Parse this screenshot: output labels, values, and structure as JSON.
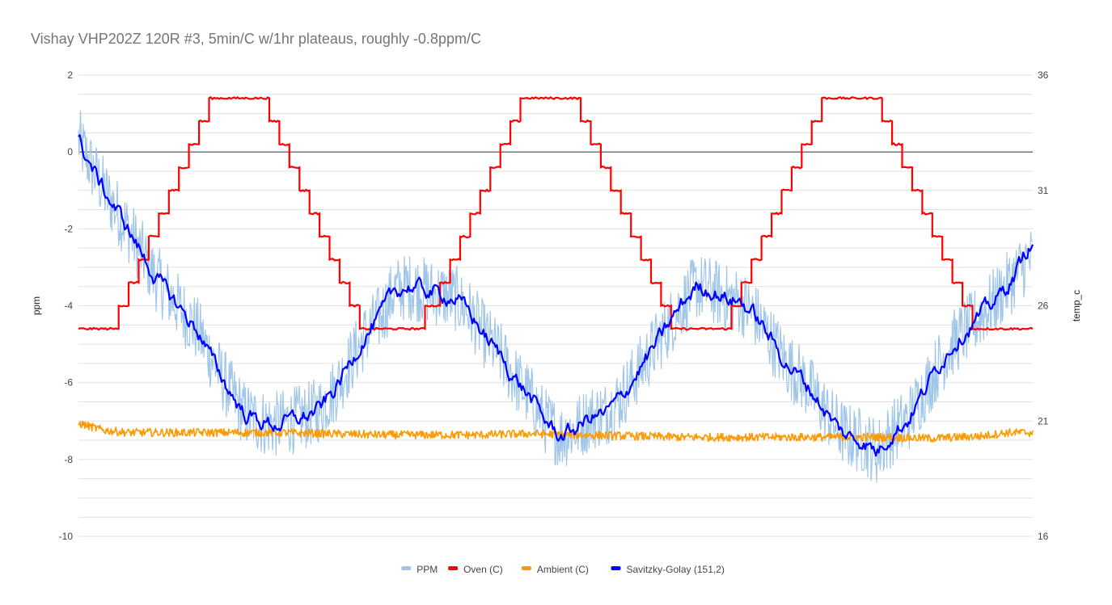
{
  "chart_data": {
    "type": "line",
    "title": "Vishay VHP202Z 120R #3, 5min/C w/1hr plateaus, roughly -0.8ppm/C",
    "ylabel": "ppm",
    "y2label": "temp_c",
    "xlabel": "",
    "ylim": [
      -10,
      2
    ],
    "y2lim": [
      16,
      36
    ],
    "yticks": [
      "2",
      "0",
      "-2",
      "-4",
      "-6",
      "-8",
      "-10"
    ],
    "y2ticks": [
      "36",
      "31",
      "26",
      "21",
      "16"
    ],
    "grid": true,
    "legend_position": "bottom",
    "series": [
      {
        "name": "PPM",
        "axis": "left",
        "color": "#9fc5e8",
        "style": "noisy",
        "noise": 0.55,
        "points": [
          [
            0,
            0.3
          ],
          [
            3,
            -0.5
          ],
          [
            6,
            -1.2
          ],
          [
            9,
            -1.8
          ],
          [
            12,
            -2.5
          ],
          [
            15,
            -3.2
          ],
          [
            18,
            -3.7
          ],
          [
            21,
            -4.2
          ],
          [
            24,
            -4.7
          ],
          [
            27,
            -5.5
          ],
          [
            30,
            -6.2
          ],
          [
            33,
            -6.8
          ],
          [
            36,
            -7.0
          ],
          [
            39,
            -7.1
          ],
          [
            42,
            -7.0
          ],
          [
            45,
            -6.9
          ],
          [
            48,
            -6.7
          ],
          [
            51,
            -6.2
          ],
          [
            54,
            -5.5
          ],
          [
            57,
            -4.8
          ],
          [
            60,
            -4.3
          ],
          [
            63,
            -3.6
          ],
          [
            66,
            -3.5
          ],
          [
            69,
            -3.6
          ],
          [
            72,
            -3.7
          ],
          [
            75,
            -3.8
          ],
          [
            78,
            -4.2
          ],
          [
            81,
            -4.8
          ],
          [
            84,
            -5.3
          ],
          [
            87,
            -5.9
          ],
          [
            90,
            -6.4
          ],
          [
            93,
            -7.0
          ],
          [
            96,
            -7.4
          ],
          [
            99,
            -7.2
          ],
          [
            102,
            -6.9
          ],
          [
            105,
            -6.8
          ],
          [
            108,
            -6.4
          ],
          [
            111,
            -5.8
          ],
          [
            114,
            -5.2
          ],
          [
            117,
            -4.6
          ],
          [
            120,
            -4.0
          ],
          [
            123,
            -3.5
          ],
          [
            126,
            -3.6
          ],
          [
            129,
            -3.8
          ],
          [
            132,
            -3.9
          ],
          [
            135,
            -4.3
          ],
          [
            138,
            -4.9
          ],
          [
            141,
            -5.5
          ],
          [
            144,
            -5.9
          ],
          [
            147,
            -6.4
          ],
          [
            150,
            -7.0
          ],
          [
            153,
            -7.4
          ],
          [
            156,
            -7.5
          ],
          [
            159,
            -7.8
          ],
          [
            162,
            -7.3
          ],
          [
            165,
            -7.0
          ],
          [
            168,
            -6.3
          ],
          [
            171,
            -5.6
          ],
          [
            174,
            -5.0
          ],
          [
            177,
            -4.6
          ],
          [
            180,
            -4.2
          ],
          [
            183,
            -3.8
          ],
          [
            186,
            -3.3
          ],
          [
            189,
            -2.8
          ]
        ]
      },
      {
        "name": "Oven (C)",
        "axis": "right",
        "color": "#ff0000",
        "style": "step",
        "noise": 0.08,
        "points": [
          [
            0,
            25
          ],
          [
            8,
            25
          ],
          [
            8,
            26
          ],
          [
            10,
            26
          ],
          [
            10,
            27
          ],
          [
            12,
            27
          ],
          [
            12,
            28
          ],
          [
            14,
            28
          ],
          [
            14,
            29
          ],
          [
            16,
            29
          ],
          [
            16,
            30
          ],
          [
            18,
            30
          ],
          [
            18,
            31
          ],
          [
            20,
            31
          ],
          [
            20,
            32
          ],
          [
            22,
            32
          ],
          [
            22,
            33
          ],
          [
            24,
            33
          ],
          [
            24,
            34
          ],
          [
            26,
            34
          ],
          [
            26,
            35
          ],
          [
            38,
            35
          ],
          [
            38,
            34
          ],
          [
            40,
            34
          ],
          [
            40,
            33
          ],
          [
            42,
            33
          ],
          [
            42,
            32
          ],
          [
            44,
            32
          ],
          [
            44,
            31
          ],
          [
            46,
            31
          ],
          [
            46,
            30
          ],
          [
            48,
            30
          ],
          [
            48,
            29
          ],
          [
            50,
            29
          ],
          [
            50,
            28
          ],
          [
            52,
            28
          ],
          [
            52,
            27
          ],
          [
            54,
            27
          ],
          [
            54,
            26
          ],
          [
            56,
            26
          ],
          [
            56,
            25
          ],
          [
            69,
            25
          ],
          [
            69,
            26
          ],
          [
            72,
            26
          ],
          [
            72,
            27
          ],
          [
            74,
            27
          ],
          [
            74,
            28
          ],
          [
            76,
            28
          ],
          [
            76,
            29
          ],
          [
            78,
            29
          ],
          [
            78,
            30
          ],
          [
            80,
            30
          ],
          [
            80,
            31
          ],
          [
            82,
            31
          ],
          [
            82,
            32
          ],
          [
            84,
            32
          ],
          [
            84,
            33
          ],
          [
            86,
            33
          ],
          [
            86,
            34
          ],
          [
            88,
            34
          ],
          [
            88,
            35
          ],
          [
            100,
            35
          ],
          [
            100,
            34
          ],
          [
            102,
            34
          ],
          [
            102,
            33
          ],
          [
            104,
            33
          ],
          [
            104,
            32
          ],
          [
            106,
            32
          ],
          [
            106,
            31
          ],
          [
            108,
            31
          ],
          [
            108,
            30
          ],
          [
            110,
            30
          ],
          [
            110,
            29
          ],
          [
            112,
            29
          ],
          [
            112,
            28
          ],
          [
            114,
            28
          ],
          [
            114,
            27
          ],
          [
            116,
            27
          ],
          [
            116,
            26
          ],
          [
            118,
            26
          ],
          [
            118,
            25
          ],
          [
            130,
            25
          ],
          [
            130,
            26
          ],
          [
            132,
            26
          ],
          [
            132,
            27
          ],
          [
            134,
            27
          ],
          [
            134,
            28
          ],
          [
            136,
            28
          ],
          [
            136,
            29
          ],
          [
            138,
            29
          ],
          [
            138,
            30
          ],
          [
            140,
            30
          ],
          [
            140,
            31
          ],
          [
            142,
            31
          ],
          [
            142,
            32
          ],
          [
            144,
            32
          ],
          [
            144,
            33
          ],
          [
            146,
            33
          ],
          [
            146,
            34
          ],
          [
            148,
            34
          ],
          [
            148,
            35
          ],
          [
            160,
            35
          ],
          [
            160,
            34
          ],
          [
            162,
            34
          ],
          [
            162,
            33
          ],
          [
            164,
            33
          ],
          [
            164,
            32
          ],
          [
            166,
            32
          ],
          [
            166,
            31
          ],
          [
            168,
            31
          ],
          [
            168,
            30
          ],
          [
            170,
            30
          ],
          [
            170,
            29
          ],
          [
            172,
            29
          ],
          [
            172,
            28
          ],
          [
            174,
            28
          ],
          [
            174,
            27
          ],
          [
            176,
            27
          ],
          [
            176,
            26
          ],
          [
            178,
            26
          ],
          [
            178,
            25
          ],
          [
            190,
            25
          ]
        ]
      },
      {
        "name": "Ambient (C)",
        "axis": "right",
        "color": "#ff9900",
        "style": "noisy",
        "noise": 0.18,
        "points": [
          [
            0,
            20.9
          ],
          [
            5,
            20.6
          ],
          [
            10,
            20.5
          ],
          [
            20,
            20.5
          ],
          [
            30,
            20.5
          ],
          [
            40,
            20.5
          ],
          [
            50,
            20.45
          ],
          [
            60,
            20.4
          ],
          [
            70,
            20.4
          ],
          [
            80,
            20.4
          ],
          [
            90,
            20.45
          ],
          [
            100,
            20.4
          ],
          [
            110,
            20.35
          ],
          [
            120,
            20.3
          ],
          [
            130,
            20.3
          ],
          [
            140,
            20.3
          ],
          [
            150,
            20.3
          ],
          [
            160,
            20.3
          ],
          [
            170,
            20.25
          ],
          [
            180,
            20.35
          ],
          [
            185,
            20.5
          ],
          [
            190,
            20.5
          ]
        ]
      },
      {
        "name": "Savitzky-Golay (151,2)",
        "axis": "left",
        "color": "#0000ff",
        "style": "noisy",
        "noise": 0.12,
        "points": [
          [
            0,
            0.3
          ],
          [
            3,
            -0.5
          ],
          [
            6,
            -1.2
          ],
          [
            9,
            -1.8
          ],
          [
            12,
            -2.5
          ],
          [
            15,
            -3.2
          ],
          [
            18,
            -3.7
          ],
          [
            21,
            -4.2
          ],
          [
            24,
            -4.7
          ],
          [
            27,
            -5.5
          ],
          [
            30,
            -6.2
          ],
          [
            33,
            -6.8
          ],
          [
            36,
            -7.0
          ],
          [
            39,
            -7.1
          ],
          [
            42,
            -7.0
          ],
          [
            45,
            -6.9
          ],
          [
            48,
            -6.7
          ],
          [
            51,
            -6.2
          ],
          [
            54,
            -5.5
          ],
          [
            57,
            -4.8
          ],
          [
            60,
            -4.3
          ],
          [
            63,
            -3.6
          ],
          [
            66,
            -3.5
          ],
          [
            69,
            -3.6
          ],
          [
            72,
            -3.7
          ],
          [
            75,
            -3.8
          ],
          [
            78,
            -4.2
          ],
          [
            81,
            -4.8
          ],
          [
            84,
            -5.3
          ],
          [
            87,
            -5.9
          ],
          [
            90,
            -6.4
          ],
          [
            93,
            -7.0
          ],
          [
            96,
            -7.4
          ],
          [
            99,
            -7.2
          ],
          [
            102,
            -6.9
          ],
          [
            105,
            -6.8
          ],
          [
            108,
            -6.4
          ],
          [
            111,
            -5.8
          ],
          [
            114,
            -5.2
          ],
          [
            117,
            -4.6
          ],
          [
            120,
            -4.0
          ],
          [
            123,
            -3.5
          ],
          [
            126,
            -3.6
          ],
          [
            129,
            -3.8
          ],
          [
            132,
            -3.9
          ],
          [
            135,
            -4.3
          ],
          [
            138,
            -4.9
          ],
          [
            141,
            -5.5
          ],
          [
            144,
            -5.9
          ],
          [
            147,
            -6.4
          ],
          [
            150,
            -7.0
          ],
          [
            153,
            -7.4
          ],
          [
            156,
            -7.5
          ],
          [
            159,
            -7.8
          ],
          [
            162,
            -7.3
          ],
          [
            165,
            -7.0
          ],
          [
            168,
            -6.3
          ],
          [
            171,
            -5.6
          ],
          [
            174,
            -5.0
          ],
          [
            177,
            -4.6
          ],
          [
            180,
            -4.2
          ],
          [
            183,
            -3.8
          ],
          [
            186,
            -3.3
          ],
          [
            189,
            -2.5
          ]
        ]
      }
    ]
  }
}
